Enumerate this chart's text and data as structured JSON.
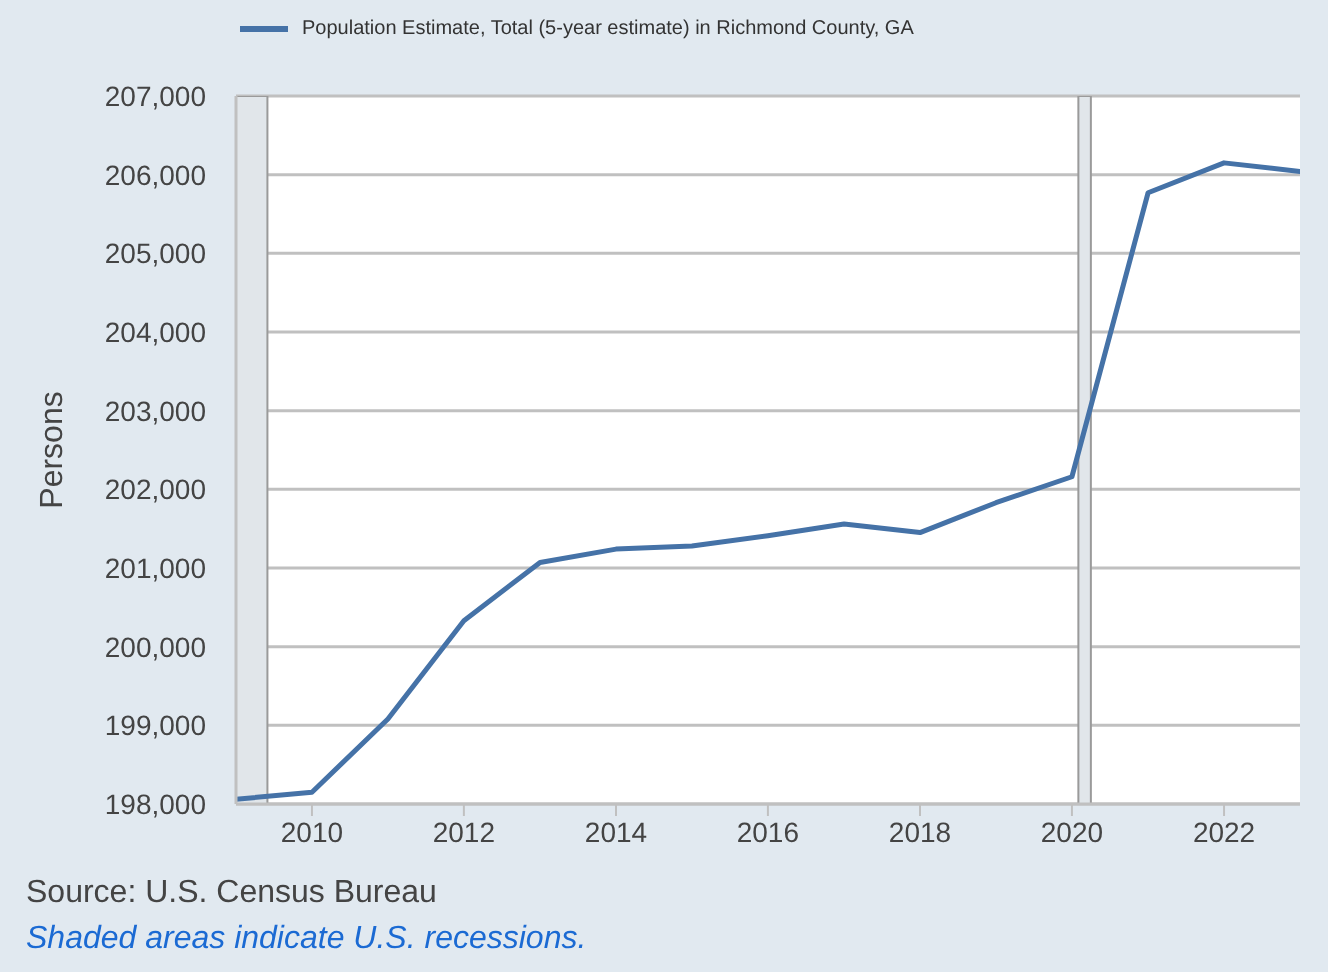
{
  "chart_data": {
    "type": "line",
    "ylabel": "Persons",
    "annotations": [
      "Source: U.S. Census Bureau",
      "Shaded areas indicate U.S. recessions."
    ],
    "x": [
      "2009",
      "2010",
      "2011",
      "2012",
      "2013",
      "2014",
      "2015",
      "2016",
      "2017",
      "2018",
      "2019",
      "2020",
      "2021",
      "2022",
      "2023"
    ],
    "series": [
      {
        "name": "Population Estimate, Total (5-year estimate) in Richmond County, GA",
        "color": "#4572a7",
        "values": [
          198060,
          198150,
          199080,
          200330,
          201070,
          201240,
          201280,
          201410,
          201560,
          201450,
          201830,
          202160,
          205770,
          206150,
          206040
        ]
      }
    ],
    "xlim": [
      "2009",
      "2023"
    ],
    "xticks": [
      {
        "value": "2010",
        "label": "2010"
      },
      {
        "value": "2012",
        "label": "2012"
      },
      {
        "value": "2014",
        "label": "2014"
      },
      {
        "value": "2016",
        "label": "2016"
      },
      {
        "value": "2018",
        "label": "2018"
      },
      {
        "value": "2020",
        "label": "2020"
      },
      {
        "value": "2022",
        "label": "2022"
      }
    ],
    "ylim": [
      198000,
      207000
    ],
    "yticks": [
      {
        "value": 198000,
        "label": "198,000"
      },
      {
        "value": 199000,
        "label": "199,000"
      },
      {
        "value": 200000,
        "label": "200,000"
      },
      {
        "value": 201000,
        "label": "201,000"
      },
      {
        "value": 202000,
        "label": "202,000"
      },
      {
        "value": 203000,
        "label": "203,000"
      },
      {
        "value": 204000,
        "label": "204,000"
      },
      {
        "value": 205000,
        "label": "205,000"
      },
      {
        "value": 206000,
        "label": "206,000"
      },
      {
        "value": 207000,
        "label": "207,000"
      }
    ],
    "bands": [
      {
        "axis": "x",
        "from": "2009-01",
        "to": "2009-06",
        "color": "#e1e6ea"
      },
      {
        "axis": "x",
        "from": "2020-02",
        "to": "2020-04",
        "color": "#e1e6ea"
      }
    ],
    "grid": "y",
    "legend": "top left",
    "marker": "none",
    "line_style": "solid"
  }
}
